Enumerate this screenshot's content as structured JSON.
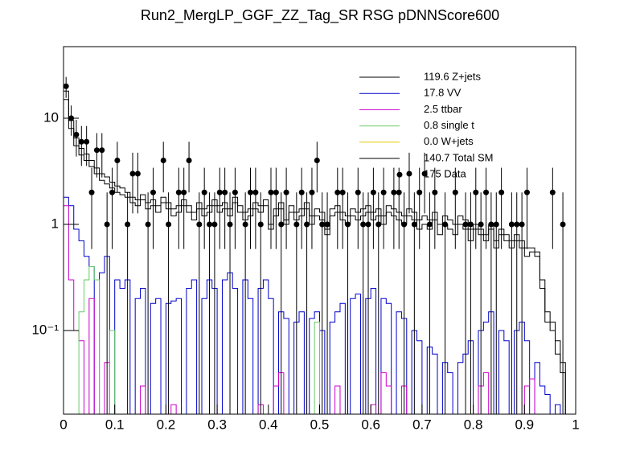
{
  "chart_data": {
    "type": "histogram",
    "title": "Run2_MergLP_GGF_ZZ_Tag_SR RSG  pDNNScore600",
    "log_y": true,
    "xlim": [
      0,
      1
    ],
    "ylim": [
      0.0163,
      47.2
    ],
    "xticks": [
      0,
      0.1,
      0.2,
      0.3,
      0.4,
      0.5,
      0.6,
      0.7,
      0.8,
      0.9,
      1
    ],
    "yticks": [
      {
        "value": 0.1,
        "label": "10⁻¹"
      },
      1,
      10
    ],
    "bins": [
      0,
      0.01,
      0.02,
      0.03,
      0.04,
      0.05,
      0.06,
      0.07,
      0.08,
      0.09,
      0.1,
      0.11,
      0.12,
      0.13,
      0.14,
      0.15,
      0.16,
      0.17,
      0.18,
      0.19,
      0.2,
      0.21,
      0.22,
      0.23,
      0.24,
      0.25,
      0.26,
      0.27,
      0.28,
      0.29,
      0.3,
      0.31,
      0.32,
      0.33,
      0.34,
      0.35,
      0.36,
      0.37,
      0.38,
      0.39,
      0.4,
      0.41,
      0.42,
      0.43,
      0.44,
      0.45,
      0.46,
      0.47,
      0.48,
      0.49,
      0.5,
      0.51,
      0.52,
      0.53,
      0.54,
      0.55,
      0.56,
      0.57,
      0.58,
      0.59,
      0.6,
      0.61,
      0.62,
      0.63,
      0.64,
      0.65,
      0.66,
      0.67,
      0.68,
      0.69,
      0.7,
      0.71,
      0.72,
      0.73,
      0.74,
      0.75,
      0.76,
      0.77,
      0.78,
      0.79,
      0.8,
      0.81,
      0.82,
      0.83,
      0.84,
      0.85,
      0.86,
      0.87,
      0.88,
      0.89,
      0.9,
      0.91,
      0.92,
      0.93,
      0.94,
      0.95,
      0.96,
      0.97,
      0.98,
      0.99,
      1
    ],
    "legend": "top-right",
    "series": [
      {
        "name": "119.6 Z+jets",
        "color": "#000000",
        "style": "step",
        "values": [
          15,
          8,
          5.5,
          4.5,
          4,
          3.5,
          3,
          2.6,
          2.4,
          2.2,
          2.0,
          1.9,
          1.8,
          1.6,
          1.5,
          1.7,
          1.4,
          1.5,
          1.3,
          1.6,
          1.4,
          1.2,
          1.3,
          1.5,
          1.3,
          1.1,
          1.4,
          1.2,
          1.3,
          1.5,
          1.3,
          1.4,
          1.2,
          1.6,
          1.3,
          1.1,
          1.2,
          1.4,
          1.3,
          1.5,
          0.9,
          1.2,
          1.4,
          1.0,
          1.3,
          1.1,
          1.2,
          1.4,
          1.0,
          1.2,
          1.1,
          0.8,
          1.2,
          1.3,
          1.1,
          1.0,
          1.2,
          1.1,
          1.2,
          1.3,
          1.1,
          1.2,
          1.0,
          1.3,
          1.2,
          1.1,
          1.0,
          1.2,
          1.1,
          0.9,
          1.0,
          0.9,
          1.1,
          0.8,
          1.0,
          0.9,
          0.8,
          1.0,
          0.9,
          0.7,
          0.9,
          0.8,
          0.7,
          0.9,
          0.6,
          0.8,
          0.7,
          0.6,
          0.7,
          0.6,
          0.5,
          0.55,
          0.5,
          0.25,
          0.12,
          0.1,
          0.06,
          0.04,
          0,
          0
        ]
      },
      {
        "name": "17.8 VV",
        "color": "#0000cc",
        "style": "step",
        "values": [
          1.8,
          1.5,
          0.9,
          0.7,
          0.5,
          0.4,
          0,
          0.35,
          0.5,
          0,
          0.3,
          0.25,
          0.3,
          0,
          0.2,
          0.25,
          0,
          0.18,
          0.2,
          0,
          0.18,
          0.19,
          0.2,
          0,
          0.25,
          0.3,
          0,
          0.2,
          0.3,
          0.25,
          0,
          0.3,
          0.35,
          0.25,
          0,
          0.3,
          0.2,
          0,
          0.25,
          0.3,
          0.2,
          0,
          0.15,
          0.13,
          0,
          0.12,
          0.15,
          0,
          0.13,
          0.15,
          0.1,
          0,
          0.12,
          0.15,
          0.18,
          0,
          0.2,
          0.22,
          0,
          0.2,
          0.25,
          0,
          0.2,
          0.18,
          0,
          0.15,
          0.13,
          0,
          0.1,
          0.08,
          0,
          0.07,
          0.06,
          0,
          0.05,
          0.04,
          0,
          0.05,
          0.06,
          0.08,
          0,
          0.1,
          0.12,
          0.15,
          0,
          0.1,
          0.08,
          0,
          0.1,
          0.12,
          0.08,
          0,
          0.05,
          0.03,
          0.025,
          0,
          0.02,
          0,
          0,
          0
        ]
      },
      {
        "name": "2.5 ttbar",
        "color": "#cc00cc",
        "style": "step",
        "values": [
          1.5,
          0.3,
          0.1,
          0.08,
          0,
          0.2,
          0,
          0,
          0.05,
          0,
          0,
          0,
          0,
          0,
          0,
          0.03,
          0,
          0,
          0,
          0,
          0,
          0.02,
          0,
          0,
          0,
          0,
          0,
          0,
          0,
          0,
          0,
          0,
          0,
          0,
          0,
          0,
          0,
          0,
          0.02,
          0,
          0,
          0.03,
          0.04,
          0,
          0,
          0,
          0,
          0,
          0,
          0,
          0,
          0,
          0,
          0.03,
          0,
          0,
          0,
          0,
          0,
          0,
          0.02,
          0,
          0.04,
          0.03,
          0,
          0,
          0.03,
          0,
          0,
          0,
          0,
          0,
          0,
          0,
          0,
          0,
          0,
          0,
          0,
          0,
          0,
          0.03,
          0.04,
          0,
          0,
          0,
          0,
          0,
          0,
          0,
          0.03,
          0.035,
          0,
          0,
          0,
          0,
          0,
          0,
          0,
          0
        ]
      },
      {
        "name": "0.8 single t",
        "color": "#66cc66",
        "style": "step",
        "values": [
          0,
          0,
          0,
          0.15,
          0.3,
          0.4,
          0.3,
          0,
          0,
          0.1,
          0,
          0,
          0,
          0,
          0,
          0,
          0,
          0,
          0,
          0,
          0,
          0,
          0,
          0,
          0,
          0,
          0,
          0,
          0,
          0,
          0,
          0,
          0,
          0,
          0,
          0,
          0,
          0,
          0,
          0,
          0,
          0,
          0,
          0,
          0,
          0,
          0,
          0,
          0,
          0.12,
          0,
          0,
          0,
          0,
          0,
          0,
          0,
          0,
          0,
          0,
          0,
          0,
          0,
          0,
          0,
          0,
          0,
          0,
          0,
          0,
          0,
          0,
          0,
          0,
          0,
          0,
          0,
          0,
          0,
          0,
          0,
          0,
          0,
          0,
          0,
          0,
          0,
          0,
          0,
          0,
          0,
          0,
          0,
          0,
          0,
          0,
          0,
          0,
          0,
          0
        ]
      },
      {
        "name": "0.0 W+jets",
        "color": "#e6c800",
        "style": "step",
        "values": [
          0,
          0,
          0,
          0,
          0,
          0,
          0,
          0,
          0,
          0,
          0,
          0,
          0,
          0,
          0,
          0,
          0,
          0,
          0,
          0,
          0,
          0,
          0,
          0,
          0,
          0,
          0,
          0,
          0,
          0,
          0,
          0,
          0,
          0,
          0,
          0,
          0,
          0,
          0,
          0,
          0,
          0,
          0,
          0,
          0,
          0,
          0,
          0,
          0,
          0,
          0,
          0,
          0,
          0,
          0,
          0,
          0,
          0,
          0,
          0,
          0,
          0,
          0,
          0,
          0,
          0,
          0,
          0,
          0,
          0,
          0,
          0,
          0,
          0,
          0,
          0,
          0,
          0,
          0,
          0,
          0,
          0,
          0,
          0,
          0,
          0,
          0,
          0,
          0,
          0,
          0,
          0,
          0,
          0,
          0,
          0,
          0,
          0,
          0,
          0
        ]
      },
      {
        "name": "140.7 Total SM",
        "color": "#000000",
        "style": "step",
        "values": [
          18,
          9.5,
          6.5,
          5.2,
          4.6,
          4,
          3.4,
          3,
          2.8,
          2.5,
          2.3,
          2.2,
          2.0,
          1.8,
          1.7,
          1.9,
          1.6,
          1.7,
          1.5,
          1.8,
          1.6,
          1.4,
          1.5,
          1.7,
          1.5,
          1.3,
          1.6,
          1.4,
          1.5,
          1.7,
          1.5,
          1.6,
          1.4,
          1.8,
          1.5,
          1.3,
          1.4,
          1.6,
          1.5,
          1.7,
          1.0,
          1.4,
          1.6,
          1.1,
          1.5,
          1.3,
          1.4,
          1.6,
          1.2,
          1.4,
          1.3,
          0.9,
          1.4,
          1.5,
          1.3,
          1.2,
          1.4,
          1.3,
          1.4,
          1.5,
          1.3,
          1.4,
          1.2,
          1.5,
          1.4,
          1.3,
          1.2,
          1.4,
          1.3,
          1.1,
          1.2,
          1.1,
          1.3,
          1.0,
          1.2,
          1.1,
          1.0,
          1.2,
          1.1,
          0.9,
          1.0,
          0.9,
          0.8,
          1.0,
          0.7,
          0.9,
          0.8,
          0.7,
          0.8,
          0.7,
          0.6,
          0.6,
          0.55,
          0.3,
          0.15,
          0.12,
          0.08,
          0.05,
          0,
          0
        ]
      },
      {
        "name": "175 Data",
        "color": "#000000",
        "style": "points",
        "values": [
          20,
          10,
          7,
          6,
          6,
          2,
          5,
          5,
          1,
          2,
          4,
          0,
          1,
          3,
          3,
          0,
          1,
          2,
          0,
          4,
          1,
          0,
          2,
          2,
          4,
          0,
          1,
          2,
          1,
          1,
          2,
          2,
          1,
          2,
          0,
          1,
          2,
          2,
          1,
          0,
          2,
          2,
          1,
          2,
          0,
          1,
          2,
          1,
          2,
          4,
          1,
          1,
          0,
          2,
          2,
          1,
          0,
          2,
          1,
          1,
          2,
          1,
          2,
          0,
          2,
          2,
          1,
          3,
          1,
          2,
          3,
          1,
          2,
          0,
          1,
          0,
          2,
          0,
          1,
          1,
          2,
          1,
          2,
          1,
          1,
          2,
          0,
          1,
          1,
          1,
          2,
          0,
          0,
          0,
          0,
          2,
          0,
          1,
          0,
          0
        ]
      }
    ]
  }
}
